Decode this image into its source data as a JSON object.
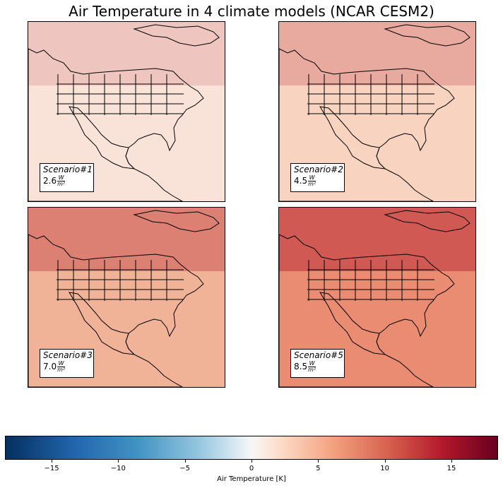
{
  "figure": {
    "title": "Air Temperature in 4 climate models (NCAR CESM2)"
  },
  "panels": [
    {
      "scenario": "Scenario#1",
      "value": "2.6",
      "unit_num": "W",
      "unit_den": "m²",
      "warming_level": 0.25,
      "fill_color": "#f9e3d8"
    },
    {
      "scenario": "Scenario#2",
      "value": "4.5",
      "unit_num": "W",
      "unit_den": "m²",
      "warming_level": 0.4,
      "fill_color": "#f8d3c0"
    },
    {
      "scenario": "Scenario#3",
      "value": "7.0",
      "unit_num": "W",
      "unit_den": "m²",
      "warming_level": 0.6,
      "fill_color": "#f1b398"
    },
    {
      "scenario": "Scenario#5",
      "value": "8.5",
      "unit_num": "W",
      "unit_den": "m²",
      "warming_level": 0.8,
      "fill_color": "#e98c72"
    }
  ],
  "colorbar": {
    "label": "Air Temperature [K]",
    "min": -18.5,
    "max": 18.5,
    "colormap": "RdBu_r",
    "ticks": [
      "−15",
      "−10",
      "−5",
      "0",
      "5",
      "10",
      "15"
    ],
    "tick_values": [
      -15,
      -10,
      -5,
      0,
      5,
      10,
      15
    ]
  }
}
